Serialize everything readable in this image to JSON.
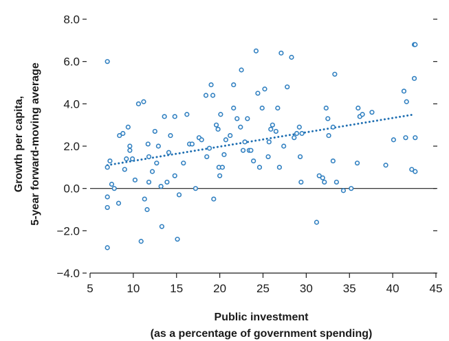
{
  "chart_data": {
    "type": "scatter",
    "xlabel_lines": [
      "Public investment",
      "(as a percentage of government spending)"
    ],
    "ylabel_lines": [
      "Growth per capita,",
      "5-year forward-moving average"
    ],
    "xlim": [
      5,
      45
    ],
    "ylim": [
      -4,
      8
    ],
    "x_ticks": [
      5,
      10,
      15,
      20,
      25,
      30,
      35,
      40,
      45
    ],
    "y_ticks": [
      -4,
      -2,
      0,
      2,
      4,
      6,
      8
    ],
    "x_tick_labels": [
      "5",
      "10",
      "15",
      "20",
      "25",
      "30",
      "35",
      "40",
      "45"
    ],
    "y_tick_labels": [
      "−4.0",
      "−2.0",
      "0.0",
      "2.0",
      "4.0",
      "6.0",
      "8.0"
    ],
    "grid": false,
    "zero_line": 0,
    "colors": {
      "points": "#2f7fc0",
      "trend": "#1f6fb2",
      "axis": "#1a1a1a"
    },
    "trendline": {
      "style": "dotted",
      "x": [
        7,
        42.5
      ],
      "y": [
        1.1,
        3.5
      ]
    },
    "points": [
      [
        7.0,
        6.0
      ],
      [
        7.0,
        1.0
      ],
      [
        7.0,
        -0.4
      ],
      [
        7.0,
        -0.9
      ],
      [
        7.0,
        -2.8
      ],
      [
        7.3,
        1.3
      ],
      [
        7.5,
        0.2
      ],
      [
        7.8,
        0.0
      ],
      [
        8.3,
        -0.7
      ],
      [
        8.4,
        2.5
      ],
      [
        8.8,
        2.6
      ],
      [
        9.0,
        0.9
      ],
      [
        9.2,
        1.4
      ],
      [
        9.4,
        2.9
      ],
      [
        9.6,
        2.0
      ],
      [
        9.6,
        1.8
      ],
      [
        9.9,
        1.4
      ],
      [
        10.2,
        0.4
      ],
      [
        10.6,
        4.0
      ],
      [
        10.9,
        -2.5
      ],
      [
        11.2,
        4.1
      ],
      [
        11.3,
        -0.5
      ],
      [
        11.6,
        -1.0
      ],
      [
        11.7,
        2.1
      ],
      [
        11.8,
        1.5
      ],
      [
        11.8,
        0.3
      ],
      [
        12.2,
        0.8
      ],
      [
        12.5,
        2.7
      ],
      [
        12.7,
        1.2
      ],
      [
        12.9,
        2.0
      ],
      [
        13.2,
        0.1
      ],
      [
        13.3,
        -1.8
      ],
      [
        13.6,
        3.4
      ],
      [
        13.9,
        0.3
      ],
      [
        14.1,
        1.7
      ],
      [
        14.3,
        2.5
      ],
      [
        14.8,
        3.4
      ],
      [
        14.8,
        0.6
      ],
      [
        15.1,
        -2.4
      ],
      [
        15.3,
        -0.3
      ],
      [
        15.8,
        1.2
      ],
      [
        16.2,
        3.5
      ],
      [
        16.5,
        2.1
      ],
      [
        16.8,
        2.1
      ],
      [
        17.2,
        0.0
      ],
      [
        17.6,
        2.4
      ],
      [
        17.9,
        2.3
      ],
      [
        18.4,
        4.4
      ],
      [
        18.5,
        1.5
      ],
      [
        18.8,
        1.9
      ],
      [
        19.0,
        4.9
      ],
      [
        19.2,
        4.4
      ],
      [
        19.3,
        -0.5
      ],
      [
        19.6,
        3.0
      ],
      [
        19.8,
        2.8
      ],
      [
        19.9,
        1.0
      ],
      [
        20.0,
        0.6
      ],
      [
        20.1,
        3.5
      ],
      [
        20.3,
        1.0
      ],
      [
        20.5,
        1.6
      ],
      [
        20.7,
        2.3
      ],
      [
        21.2,
        2.5
      ],
      [
        21.6,
        4.9
      ],
      [
        21.6,
        3.8
      ],
      [
        22.0,
        3.3
      ],
      [
        22.4,
        2.9
      ],
      [
        22.5,
        5.6
      ],
      [
        22.7,
        1.8
      ],
      [
        22.9,
        2.2
      ],
      [
        23.2,
        3.3
      ],
      [
        23.4,
        1.8
      ],
      [
        23.6,
        1.8
      ],
      [
        23.9,
        1.3
      ],
      [
        24.2,
        6.5
      ],
      [
        24.4,
        4.5
      ],
      [
        24.6,
        1.0
      ],
      [
        24.9,
        3.8
      ],
      [
        25.2,
        4.7
      ],
      [
        25.6,
        1.5
      ],
      [
        25.7,
        2.2
      ],
      [
        25.9,
        2.8
      ],
      [
        26.1,
        3.0
      ],
      [
        26.5,
        2.7
      ],
      [
        26.7,
        3.8
      ],
      [
        26.9,
        1.0
      ],
      [
        27.1,
        6.4
      ],
      [
        27.4,
        2.0
      ],
      [
        27.8,
        4.8
      ],
      [
        28.3,
        6.2
      ],
      [
        28.6,
        2.4
      ],
      [
        28.9,
        2.6
      ],
      [
        29.2,
        2.9
      ],
      [
        29.3,
        1.5
      ],
      [
        29.4,
        0.3
      ],
      [
        29.5,
        2.6
      ],
      [
        31.2,
        -1.6
      ],
      [
        31.5,
        0.6
      ],
      [
        31.9,
        0.5
      ],
      [
        32.1,
        0.3
      ],
      [
        32.3,
        3.8
      ],
      [
        32.5,
        3.3
      ],
      [
        32.6,
        2.5
      ],
      [
        33.1,
        1.3
      ],
      [
        33.1,
        2.9
      ],
      [
        33.3,
        5.4
      ],
      [
        33.5,
        0.3
      ],
      [
        34.3,
        -0.1
      ],
      [
        35.2,
        0.0
      ],
      [
        35.9,
        1.2
      ],
      [
        36.0,
        3.8
      ],
      [
        36.2,
        3.4
      ],
      [
        36.5,
        3.5
      ],
      [
        37.6,
        3.6
      ],
      [
        39.2,
        1.1
      ],
      [
        40.1,
        2.3
      ],
      [
        41.3,
        4.6
      ],
      [
        41.5,
        2.4
      ],
      [
        41.6,
        4.1
      ],
      [
        42.2,
        0.9
      ],
      [
        42.5,
        5.2
      ],
      [
        42.5,
        6.8
      ],
      [
        42.6,
        6.8
      ],
      [
        42.6,
        0.8
      ],
      [
        42.6,
        2.4
      ]
    ]
  }
}
